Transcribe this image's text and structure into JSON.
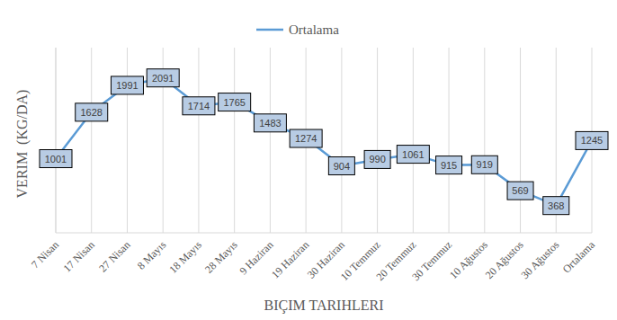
{
  "chart_data": {
    "type": "line",
    "x_label": "BIÇIM TARIHLERI",
    "y_label": "VERIM  (KG/DA)",
    "categories": [
      "7 Nisan",
      "17 Nisan",
      "27 Nisan",
      "8 Mayıs",
      "18 Mayıs",
      "28 Mayıs",
      "9 Haziran",
      "19 Haziran",
      "30 Haziran",
      "10 Temmuz",
      "20 Temmuz",
      "30 Temmuz",
      "10 Ağustos",
      "20 Ağustos",
      "30 Ağustos",
      "Ortalama"
    ],
    "series": [
      {
        "name": "Ortalama",
        "color": "#5b9bd5",
        "values": [
          1001,
          1628,
          1991,
          2091,
          1714,
          1765,
          1483,
          1274,
          904,
          990,
          1061,
          915,
          919,
          569,
          368,
          1245
        ]
      }
    ],
    "ylim": [
      0,
      2500
    ],
    "yticks": [],
    "grid": true,
    "legend": "top",
    "data_labels": true,
    "tick_labels": "x"
  }
}
